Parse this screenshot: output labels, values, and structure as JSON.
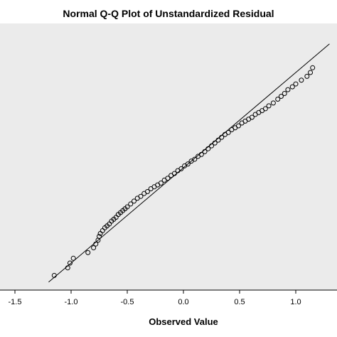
{
  "chart_data": {
    "type": "scatter",
    "title": "Normal Q-Q Plot of Unstandardized Residual",
    "xlabel": "Observed Value",
    "ylabel": "",
    "xlim": [
      -1.55,
      1.35
    ],
    "ylim": [
      -1.25,
      1.25
    ],
    "x_ticks": [
      -1.5,
      -1.0,
      -0.5,
      0.0,
      0.5,
      1.0
    ],
    "x_tick_labels": [
      "-1.5",
      "-1.0",
      "-0.5",
      "0.0",
      "0.5",
      "1.0"
    ],
    "y_axis_visible": false,
    "grid": false,
    "legend": "none",
    "plot_background": "#ebebeb",
    "marker": "open-circle",
    "reference_line": {
      "from": [
        -1.2,
        -1.2
      ],
      "to": [
        1.3,
        1.3
      ]
    },
    "series": [
      {
        "points": [
          [
            -1.15,
            -1.13
          ],
          [
            -1.03,
            -1.05
          ],
          [
            -1.01,
            -1.0
          ],
          [
            -0.98,
            -0.95
          ],
          [
            -0.85,
            -0.89
          ],
          [
            -0.8,
            -0.84
          ],
          [
            -0.78,
            -0.8
          ],
          [
            -0.76,
            -0.76
          ],
          [
            -0.75,
            -0.72
          ],
          [
            -0.74,
            -0.69
          ],
          [
            -0.72,
            -0.66
          ],
          [
            -0.7,
            -0.63
          ],
          [
            -0.68,
            -0.61
          ],
          [
            -0.66,
            -0.59
          ],
          [
            -0.64,
            -0.56
          ],
          [
            -0.62,
            -0.54
          ],
          [
            -0.6,
            -0.52
          ],
          [
            -0.58,
            -0.49
          ],
          [
            -0.56,
            -0.47
          ],
          [
            -0.54,
            -0.45
          ],
          [
            -0.52,
            -0.43
          ],
          [
            -0.5,
            -0.41
          ],
          [
            -0.47,
            -0.38
          ],
          [
            -0.44,
            -0.35
          ],
          [
            -0.41,
            -0.32
          ],
          [
            -0.38,
            -0.3
          ],
          [
            -0.35,
            -0.27
          ],
          [
            -0.32,
            -0.25
          ],
          [
            -0.29,
            -0.22
          ],
          [
            -0.26,
            -0.2
          ],
          [
            -0.23,
            -0.18
          ],
          [
            -0.2,
            -0.16
          ],
          [
            -0.17,
            -0.13
          ],
          [
            -0.14,
            -0.11
          ],
          [
            -0.11,
            -0.08
          ],
          [
            -0.08,
            -0.06
          ],
          [
            -0.05,
            -0.03
          ],
          [
            -0.02,
            -0.01
          ],
          [
            0.01,
            0.02
          ],
          [
            0.04,
            0.04
          ],
          [
            0.07,
            0.07
          ],
          [
            0.1,
            0.09
          ],
          [
            0.13,
            0.12
          ],
          [
            0.16,
            0.14
          ],
          [
            0.19,
            0.17
          ],
          [
            0.22,
            0.2
          ],
          [
            0.25,
            0.23
          ],
          [
            0.28,
            0.26
          ],
          [
            0.31,
            0.29
          ],
          [
            0.34,
            0.32
          ],
          [
            0.37,
            0.35
          ],
          [
            0.4,
            0.37
          ],
          [
            0.43,
            0.4
          ],
          [
            0.46,
            0.42
          ],
          [
            0.49,
            0.44
          ],
          [
            0.52,
            0.47
          ],
          [
            0.55,
            0.49
          ],
          [
            0.58,
            0.51
          ],
          [
            0.61,
            0.53
          ],
          [
            0.64,
            0.56
          ],
          [
            0.67,
            0.58
          ],
          [
            0.7,
            0.6
          ],
          [
            0.73,
            0.62
          ],
          [
            0.76,
            0.65
          ],
          [
            0.8,
            0.68
          ],
          [
            0.84,
            0.72
          ],
          [
            0.87,
            0.75
          ],
          [
            0.9,
            0.78
          ],
          [
            0.93,
            0.82
          ],
          [
            0.97,
            0.85
          ],
          [
            1.0,
            0.88
          ],
          [
            1.05,
            0.92
          ],
          [
            1.1,
            0.96
          ],
          [
            1.13,
            1.0
          ],
          [
            1.15,
            1.05
          ]
        ]
      }
    ]
  }
}
